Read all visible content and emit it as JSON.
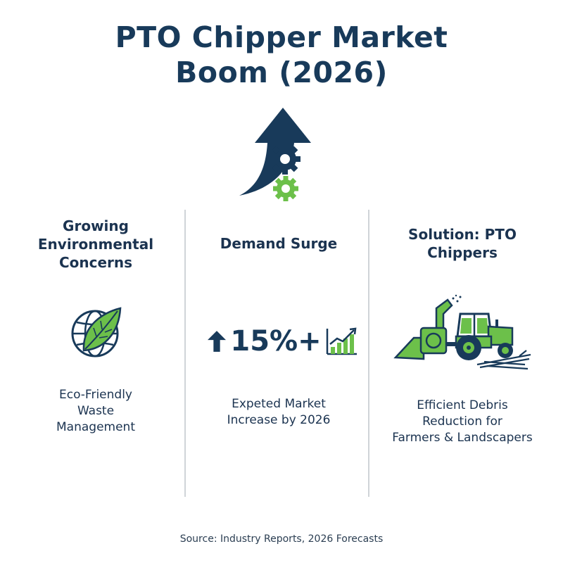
{
  "title": {
    "line1": "PTO Chipper Market",
    "line2": "Boom (2026)"
  },
  "columns": [
    {
      "title_lines": [
        "Growing",
        "Environmental",
        "Concerns"
      ],
      "icon": "globe-leaf-icon",
      "caption_lines": [
        "Eco-Friendly",
        "Waste",
        "Management"
      ]
    },
    {
      "title_lines": [
        "Demand Surge"
      ],
      "stat": {
        "arrow_icon": "up-arrow-icon",
        "value": "15%+",
        "chart_icon": "bar-chart-growth-icon"
      },
      "caption_lines": [
        "Expeted Market",
        "Increase by 2026"
      ]
    },
    {
      "title_lines": [
        "Solution: PTO",
        "Chippers"
      ],
      "icon": "tractor-chipper-icon",
      "caption_lines": [
        "Efficient Debris",
        "Reduction for",
        "Farmers & Landscapers"
      ]
    }
  ],
  "hero_icon": "arrow-gears-icon",
  "source": "Source: Industry Reports, 2026 Forecasts",
  "colors": {
    "navy": "#183a5a",
    "green": "#6cc04a",
    "divider": "#d0d4d8"
  }
}
